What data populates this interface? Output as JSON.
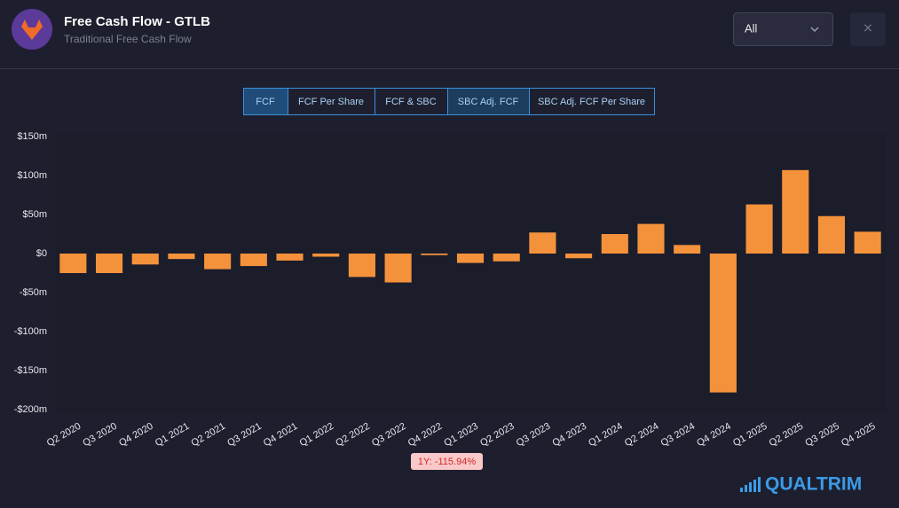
{
  "header": {
    "title": "Free Cash Flow - GTLB",
    "subtitle": "Traditional Free Cash Flow",
    "dropdown": "All",
    "close": "✕"
  },
  "tabs": [
    "FCF",
    "FCF Per Share",
    "FCF & SBC",
    "SBC Adj. FCF",
    "SBC Adj. FCF Per Share"
  ],
  "brand": "QUALTRIM",
  "chart_data": {
    "type": "bar",
    "categories": [
      "Q2 2020",
      "Q3 2020",
      "Q4 2020",
      "Q1 2021",
      "Q2 2021",
      "Q3 2021",
      "Q4 2021",
      "Q1 2022",
      "Q2 2022",
      "Q3 2022",
      "Q4 2022",
      "Q1 2023",
      "Q2 2023",
      "Q3 2023",
      "Q4 2023",
      "Q1 2024",
      "Q2 2024",
      "Q3 2024",
      "Q4 2024",
      "Q1 2025",
      "Q2 2025",
      "Q3 2025",
      "Q4 2025"
    ],
    "values": [
      -25,
      -25,
      -14,
      -7,
      -20,
      -16,
      -9,
      -4,
      -30,
      -37,
      -2,
      -12,
      -10,
      27,
      -6,
      25,
      38,
      11,
      -178,
      63,
      107,
      48,
      28
    ],
    "color": "#f4923c",
    "ylim": [
      -200,
      150
    ],
    "yticks": [
      {
        "value": 150,
        "label": "$150m"
      },
      {
        "value": 100,
        "label": "$100m"
      },
      {
        "value": 50,
        "label": "$50m"
      },
      {
        "value": 0,
        "label": "$0"
      },
      {
        "value": -50,
        "label": "-$50m"
      },
      {
        "value": -100,
        "label": "-$100m"
      },
      {
        "value": -150,
        "label": "-$150m"
      },
      {
        "value": -200,
        "label": "-$200m"
      }
    ],
    "grid": false,
    "annotation": "1Y: -115.94%"
  }
}
